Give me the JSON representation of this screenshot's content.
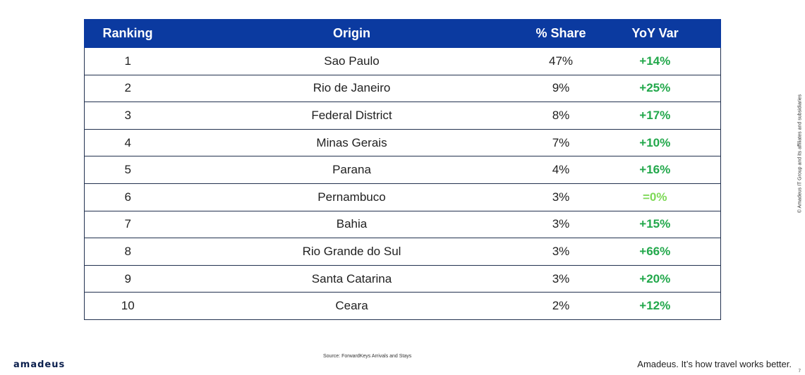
{
  "table": {
    "headers": [
      "Ranking",
      "Origin",
      "% Share",
      "YoY Var"
    ],
    "rows": [
      {
        "rank": "1",
        "origin": "Sao Paulo",
        "share": "47%",
        "yoy": "+14%"
      },
      {
        "rank": "2",
        "origin": "Rio de Janeiro",
        "share": "9%",
        "yoy": "+25%"
      },
      {
        "rank": "3",
        "origin": "Federal District",
        "share": "8%",
        "yoy": "+17%"
      },
      {
        "rank": "4",
        "origin": "Minas Gerais",
        "share": "7%",
        "yoy": "+10%"
      },
      {
        "rank": "5",
        "origin": "Parana",
        "share": "4%",
        "yoy": "+16%"
      },
      {
        "rank": "6",
        "origin": "Pernambuco",
        "share": "3%",
        "yoy": "=0%"
      },
      {
        "rank": "7",
        "origin": "Bahia",
        "share": "3%",
        "yoy": "+15%"
      },
      {
        "rank": "8",
        "origin": "Rio Grande do Sul",
        "share": "3%",
        "yoy": "+66%"
      },
      {
        "rank": "9",
        "origin": "Santa Catarina",
        "share": "3%",
        "yoy": "+20%"
      },
      {
        "rank": "10",
        "origin": "Ceara",
        "share": "2%",
        "yoy": "+12%"
      }
    ]
  },
  "footer": {
    "logo": "amadeus",
    "source": "Source: ForwardKeys Arrivals and Stays",
    "tagline": "Amadeus. It’s how travel works better.",
    "copyright": "© Amadeus IT Group and its affiliates and subsidiaries",
    "page_number": "7"
  },
  "colors": {
    "header_bg": "#0b3aa0",
    "positive": "#22a84b",
    "neutral": "#7ed957"
  }
}
